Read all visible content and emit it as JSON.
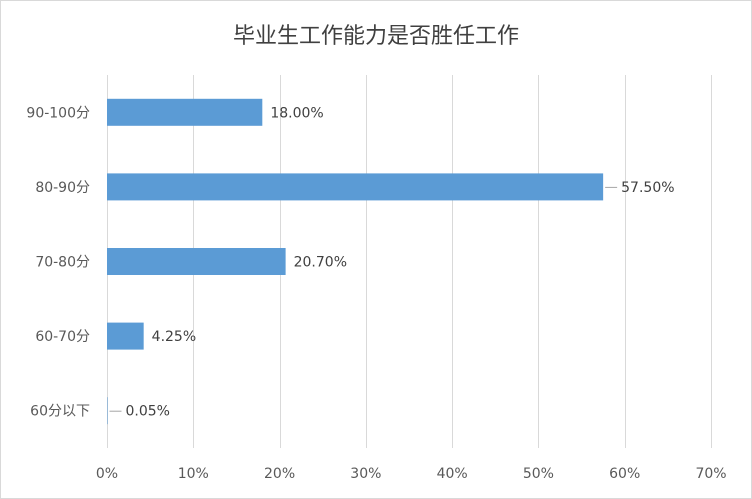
{
  "chart_data": {
    "type": "bar",
    "orientation": "horizontal",
    "title": "毕业生工作能力是否胜任工作",
    "xlabel": "",
    "ylabel": "",
    "categories": [
      "90-100分",
      "80-90分",
      "70-80分",
      "60-70分",
      "60分以下"
    ],
    "values": [
      18.0,
      57.5,
      20.7,
      4.25,
      0.05
    ],
    "value_labels": [
      "18.00%",
      "57.50%",
      "20.70%",
      "4.25%",
      "0.05%"
    ],
    "xlim": [
      0,
      70
    ],
    "x_ticks": [
      0,
      10,
      20,
      30,
      40,
      50,
      60,
      70
    ],
    "x_tick_labels": [
      "0%",
      "10%",
      "20%",
      "30%",
      "40%",
      "50%",
      "60%",
      "70%"
    ],
    "grid": "vertical",
    "legend": "none",
    "bar_color": "#5b9bd5"
  }
}
